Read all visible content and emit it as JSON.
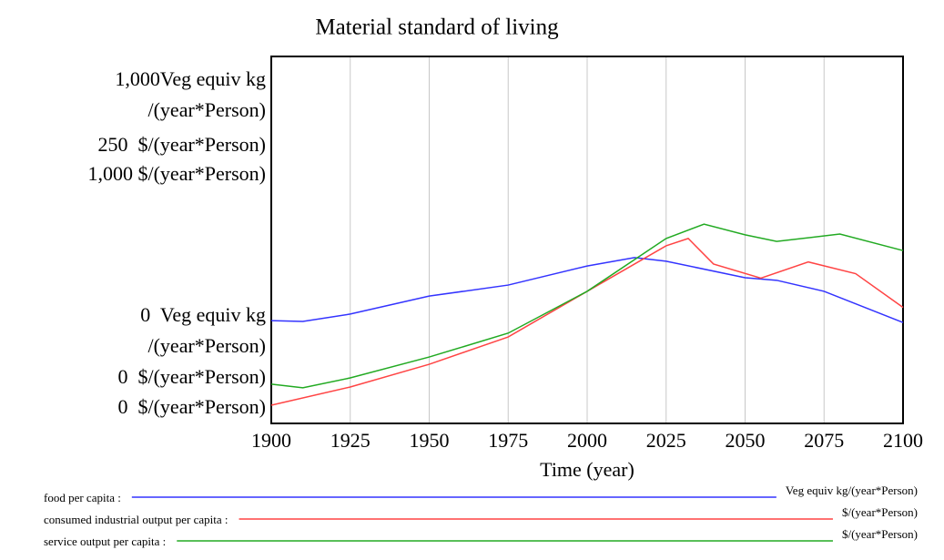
{
  "chart_data": {
    "type": "line",
    "title": "Material standard of living",
    "xlabel": "Time (year)",
    "xlim": [
      1900,
      2100
    ],
    "xticks": [
      1900,
      1925,
      1950,
      1975,
      2000,
      2025,
      2050,
      2075,
      2100
    ],
    "grid": true,
    "axes": [
      {
        "ylim": [
          0,
          1000
        ],
        "yticks": [
          {
            "value": 0,
            "label": "0  Veg equiv kg\n/(year*Person)"
          },
          {
            "value": 1000,
            "label": "1,000Veg equiv kg\n/(year*Person)"
          }
        ]
      },
      {
        "ylim": [
          0,
          250
        ],
        "yticks": [
          {
            "value": 0,
            "label": "0  $/(year*Person)"
          },
          {
            "value": 250,
            "label": "250  $/(year*Person)"
          }
        ]
      },
      {
        "ylim": [
          0,
          1000
        ],
        "yticks": [
          {
            "value": 0,
            "label": "0  $/(year*Person)"
          },
          {
            "value": 1000,
            "label": "1,000 $/(year*Person)"
          }
        ]
      }
    ],
    "series": [
      {
        "name": "food per capita :",
        "units": "Veg equiv kg/(year*Person)",
        "color": "#3333ff",
        "axis": 0,
        "x": [
          1900,
          1910,
          1925,
          1950,
          1975,
          2000,
          2015,
          2025,
          2050,
          2060,
          2075,
          2100
        ],
        "values": [
          280,
          278,
          298,
          347,
          377,
          429,
          452,
          442,
          397,
          390,
          360,
          275
        ]
      },
      {
        "name": "consumed industrial output per capita :",
        "units": "$/(year*Person)",
        "color": "#ff4444",
        "axis": 1,
        "x": [
          1900,
          1925,
          1950,
          1975,
          2000,
          2025,
          2032,
          2040,
          2055,
          2070,
          2085,
          2100
        ],
        "values": [
          12.4,
          24.8,
          40.3,
          58.9,
          90,
          121,
          126,
          108.6,
          99,
          110,
          102,
          79
        ]
      },
      {
        "name": "service output per capita :",
        "units": "$/(year*Person)",
        "color": "#22aa22",
        "axis": 2,
        "x": [
          1900,
          1910,
          1925,
          1950,
          1975,
          2000,
          2025,
          2037,
          2050,
          2060,
          2080,
          2100
        ],
        "values": [
          107,
          97,
          124,
          181,
          246,
          360,
          504,
          543,
          514,
          496,
          516,
          471
        ]
      }
    ]
  }
}
